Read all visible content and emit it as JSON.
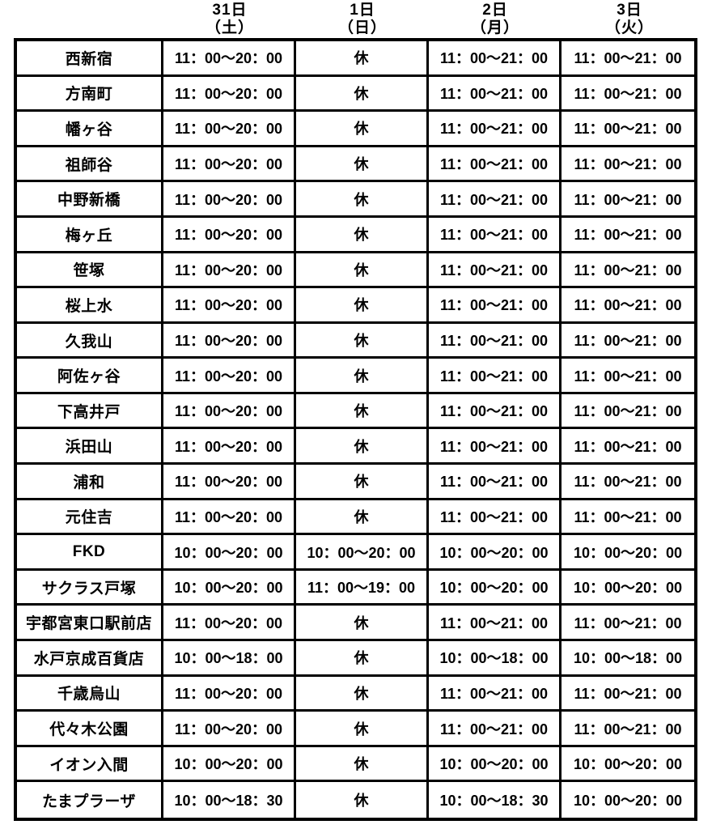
{
  "header": {
    "corner": "",
    "columns": [
      {
        "date": "31日",
        "dow": "（土）"
      },
      {
        "date": "1日",
        "dow": "（日）"
      },
      {
        "date": "2日",
        "dow": "（月）"
      },
      {
        "date": "3日",
        "dow": "（火）"
      }
    ]
  },
  "table": {
    "closed_label": "休",
    "rows": [
      {
        "store": "西新宿",
        "hours": [
          "11：00～20：00",
          "休",
          "11：00～21：00",
          "11：00～21：00"
        ]
      },
      {
        "store": "方南町",
        "hours": [
          "11：00～20：00",
          "休",
          "11：00～21：00",
          "11：00～21：00"
        ]
      },
      {
        "store": "幡ヶ谷",
        "hours": [
          "11：00～20：00",
          "休",
          "11：00～21：00",
          "11：00～21：00"
        ]
      },
      {
        "store": "祖師谷",
        "hours": [
          "11：00～20：00",
          "休",
          "11：00～21：00",
          "11：00～21：00"
        ]
      },
      {
        "store": "中野新橋",
        "hours": [
          "11：00～20：00",
          "休",
          "11：00～21：00",
          "11：00～21：00"
        ]
      },
      {
        "store": "梅ヶ丘",
        "hours": [
          "11：00～20：00",
          "休",
          "11：00～21：00",
          "11：00～21：00"
        ]
      },
      {
        "store": "笹塚",
        "hours": [
          "11：00～20：00",
          "休",
          "11：00～21：00",
          "11：00～21：00"
        ]
      },
      {
        "store": "桜上水",
        "hours": [
          "11：00～20：00",
          "休",
          "11：00～21：00",
          "11：00～21：00"
        ]
      },
      {
        "store": "久我山",
        "hours": [
          "11：00～20：00",
          "休",
          "11：00～21：00",
          "11：00～21：00"
        ]
      },
      {
        "store": "阿佐ヶ谷",
        "hours": [
          "11：00～20：00",
          "休",
          "11：00～21：00",
          "11：00～21：00"
        ]
      },
      {
        "store": "下高井戸",
        "hours": [
          "11：00～20：00",
          "休",
          "11：00～21：00",
          "11：00～21：00"
        ]
      },
      {
        "store": "浜田山",
        "hours": [
          "11：00～20：00",
          "休",
          "11：00～21：00",
          "11：00～21：00"
        ]
      },
      {
        "store": "浦和",
        "hours": [
          "11：00～20：00",
          "休",
          "11：00～21：00",
          "11：00～21：00"
        ]
      },
      {
        "store": "元住吉",
        "hours": [
          "11：00～20：00",
          "休",
          "11：00～21：00",
          "11：00～21：00"
        ]
      },
      {
        "store": "FKD",
        "hours": [
          "10：00～20：00",
          "10：00～20：00",
          "10：00～20：00",
          "10：00～20：00"
        ]
      },
      {
        "store": "サクラス戸塚",
        "hours": [
          "10：00～20：00",
          "11：00～19：00",
          "10：00～20：00",
          "10：00～20：00"
        ]
      },
      {
        "store": "宇都宮東口駅前店",
        "hours": [
          "11：00～20：00",
          "休",
          "11：00～21：00",
          "11：00～21：00"
        ]
      },
      {
        "store": "水戸京成百貨店",
        "hours": [
          "10：00～18：00",
          "休",
          "10：00～18：00",
          "10：00～18：00"
        ]
      },
      {
        "store": "千歳烏山",
        "hours": [
          "11：00～20：00",
          "休",
          "11：00～21：00",
          "11：00～21：00"
        ]
      },
      {
        "store": "代々木公園",
        "hours": [
          "11：00～20：00",
          "休",
          "11：00～21：00",
          "11：00～21：00"
        ]
      },
      {
        "store": "イオン入間",
        "hours": [
          "10：00～20：00",
          "休",
          "10：00～20：00",
          "10：00～20：00"
        ]
      },
      {
        "store": "たまプラーザ",
        "hours": [
          "10：00～18：30",
          "休",
          "10：00～18：30",
          "10：00～20：00"
        ]
      }
    ]
  },
  "colors": {
    "border": "#000000",
    "text": "#000000",
    "background": "#ffffff"
  }
}
